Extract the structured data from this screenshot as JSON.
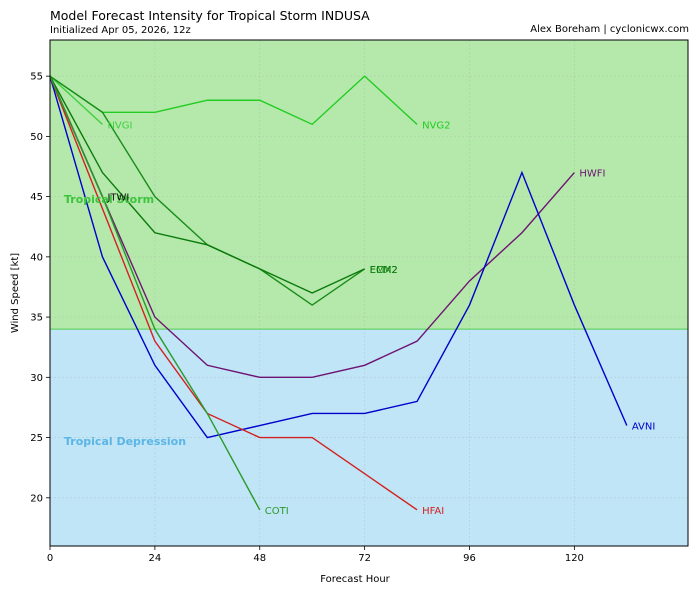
{
  "header": {
    "title": "Model Forecast Intensity for Tropical Storm INDUSA",
    "subtitle": "Initialized Apr 05, 2026, 12z",
    "credit": "Alex Boreham | cyclonicwx.com"
  },
  "chart_data": {
    "type": "line",
    "xlabel": "Forecast Hour",
    "ylabel": "Wind Speed [kt]",
    "xlim": [
      0,
      146
    ],
    "ylim": [
      16,
      58
    ],
    "xticks": [
      0,
      24,
      48,
      72,
      96,
      120
    ],
    "yticks": [
      20,
      25,
      30,
      35,
      40,
      45,
      50,
      55
    ],
    "grid": true,
    "bands": [
      {
        "label": "Tropical Storm",
        "y_from": 34,
        "y_to": 58,
        "color": "#b5e8ab",
        "label_color": "#3cc43c"
      },
      {
        "label": "Tropical Depression",
        "y_from": 16,
        "y_to": 34,
        "color": "#bfe5f6",
        "label_color": "#5bb5e5"
      }
    ],
    "series": [
      {
        "name": "NVGI",
        "color": "#3ecf3e",
        "x": [
          0,
          12
        ],
        "y": [
          55,
          51
        ]
      },
      {
        "name": "NVG2",
        "color": "#22cc22",
        "x": [
          0,
          12,
          24,
          36,
          48,
          60,
          72,
          84
        ],
        "y": [
          55,
          52,
          52,
          53,
          53,
          51,
          55,
          51
        ]
      },
      {
        "name": "JTWI",
        "color": "#111111",
        "x": [
          0,
          12
        ],
        "y": [
          55,
          45
        ]
      },
      {
        "name": "EMX2",
        "color": "#1a8c1a",
        "x": [
          0,
          12,
          24,
          36,
          48,
          60,
          72
        ],
        "y": [
          55,
          52,
          45,
          41,
          39,
          36,
          39
        ]
      },
      {
        "name": "ECM2",
        "color": "#0a7a0a",
        "x": [
          0,
          12,
          24,
          36,
          48,
          60,
          72
        ],
        "y": [
          55,
          47,
          42,
          41,
          39,
          37,
          39
        ]
      },
      {
        "name": "HWFI",
        "color": "#6e1374",
        "x": [
          0,
          12,
          24,
          36,
          48,
          60,
          72,
          84,
          96,
          108,
          120
        ],
        "y": [
          55,
          45,
          35,
          31,
          30,
          30,
          31,
          33,
          38,
          42,
          47
        ]
      },
      {
        "name": "AVNI",
        "color": "#0000cc",
        "x": [
          0,
          12,
          24,
          36,
          48,
          60,
          72,
          84,
          96,
          108,
          120,
          132
        ],
        "y": [
          55,
          40,
          31,
          25,
          26,
          27,
          27,
          28,
          36,
          47,
          36,
          26
        ]
      },
      {
        "name": "HFAI",
        "color": "#d42020",
        "x": [
          0,
          12,
          24,
          36,
          48,
          60,
          72,
          84
        ],
        "y": [
          55,
          44,
          33,
          27,
          25,
          25,
          22,
          19
        ]
      },
      {
        "name": "COTI",
        "color": "#2a9a2a",
        "x": [
          0,
          12,
          24,
          36,
          48
        ],
        "y": [
          55,
          45,
          34,
          27,
          19
        ]
      }
    ]
  }
}
